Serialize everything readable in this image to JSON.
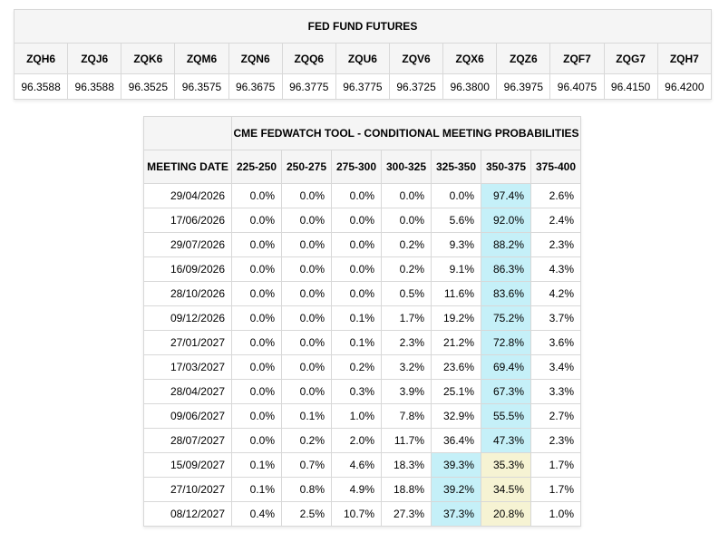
{
  "colors": {
    "highlight_cyan": "#c5f0f8",
    "highlight_yellow": "#f6f3d3",
    "border": "#d8d8d8",
    "header_bg": "#f5f5f5"
  },
  "futures_table": {
    "title": "FED FUND FUTURES",
    "contracts": [
      {
        "code": "ZQH6",
        "price": "96.3588"
      },
      {
        "code": "ZQJ6",
        "price": "96.3588"
      },
      {
        "code": "ZQK6",
        "price": "96.3525"
      },
      {
        "code": "ZQM6",
        "price": "96.3575"
      },
      {
        "code": "ZQN6",
        "price": "96.3675"
      },
      {
        "code": "ZQQ6",
        "price": "96.3775"
      },
      {
        "code": "ZQU6",
        "price": "96.3775"
      },
      {
        "code": "ZQV6",
        "price": "96.3725"
      },
      {
        "code": "ZQX6",
        "price": "96.3800"
      },
      {
        "code": "ZQZ6",
        "price": "96.3975"
      },
      {
        "code": "ZQF7",
        "price": "96.4075"
      },
      {
        "code": "ZQG7",
        "price": "96.4150"
      },
      {
        "code": "ZQH7",
        "price": "96.4200"
      }
    ]
  },
  "fedwatch_table": {
    "title": "CME FEDWATCH TOOL - CONDITIONAL MEETING PROBABILITIES",
    "date_header": "MEETING DATE",
    "rate_ranges": [
      "225-250",
      "250-275",
      "275-300",
      "300-325",
      "325-350",
      "350-375",
      "375-400"
    ],
    "rows": [
      {
        "date": "29/04/2026",
        "values": [
          "0.0%",
          "0.0%",
          "0.0%",
          "0.0%",
          "0.0%",
          "97.4%",
          "2.6%"
        ],
        "highlights": {
          "5": "cyan"
        }
      },
      {
        "date": "17/06/2026",
        "values": [
          "0.0%",
          "0.0%",
          "0.0%",
          "0.0%",
          "5.6%",
          "92.0%",
          "2.4%"
        ],
        "highlights": {
          "5": "cyan"
        }
      },
      {
        "date": "29/07/2026",
        "values": [
          "0.0%",
          "0.0%",
          "0.0%",
          "0.2%",
          "9.3%",
          "88.2%",
          "2.3%"
        ],
        "highlights": {
          "5": "cyan"
        }
      },
      {
        "date": "16/09/2026",
        "values": [
          "0.0%",
          "0.0%",
          "0.0%",
          "0.2%",
          "9.1%",
          "86.3%",
          "4.3%"
        ],
        "highlights": {
          "5": "cyan"
        }
      },
      {
        "date": "28/10/2026",
        "values": [
          "0.0%",
          "0.0%",
          "0.0%",
          "0.5%",
          "11.6%",
          "83.6%",
          "4.2%"
        ],
        "highlights": {
          "5": "cyan"
        }
      },
      {
        "date": "09/12/2026",
        "values": [
          "0.0%",
          "0.0%",
          "0.1%",
          "1.7%",
          "19.2%",
          "75.2%",
          "3.7%"
        ],
        "highlights": {
          "5": "cyan"
        }
      },
      {
        "date": "27/01/2027",
        "values": [
          "0.0%",
          "0.0%",
          "0.1%",
          "2.3%",
          "21.2%",
          "72.8%",
          "3.6%"
        ],
        "highlights": {
          "5": "cyan"
        }
      },
      {
        "date": "17/03/2027",
        "values": [
          "0.0%",
          "0.0%",
          "0.2%",
          "3.2%",
          "23.6%",
          "69.4%",
          "3.4%"
        ],
        "highlights": {
          "5": "cyan"
        }
      },
      {
        "date": "28/04/2027",
        "values": [
          "0.0%",
          "0.0%",
          "0.3%",
          "3.9%",
          "25.1%",
          "67.3%",
          "3.3%"
        ],
        "highlights": {
          "5": "cyan"
        }
      },
      {
        "date": "09/06/2027",
        "values": [
          "0.0%",
          "0.1%",
          "1.0%",
          "7.8%",
          "32.9%",
          "55.5%",
          "2.7%"
        ],
        "highlights": {
          "5": "cyan"
        }
      },
      {
        "date": "28/07/2027",
        "values": [
          "0.0%",
          "0.2%",
          "2.0%",
          "11.7%",
          "36.4%",
          "47.3%",
          "2.3%"
        ],
        "highlights": {
          "5": "cyan"
        }
      },
      {
        "date": "15/09/2027",
        "values": [
          "0.1%",
          "0.7%",
          "4.6%",
          "18.3%",
          "39.3%",
          "35.3%",
          "1.7%"
        ],
        "highlights": {
          "4": "cyan",
          "5": "yellow"
        }
      },
      {
        "date": "27/10/2027",
        "values": [
          "0.1%",
          "0.8%",
          "4.9%",
          "18.8%",
          "39.2%",
          "34.5%",
          "1.7%"
        ],
        "highlights": {
          "4": "cyan",
          "5": "yellow"
        }
      },
      {
        "date": "08/12/2027",
        "values": [
          "0.4%",
          "2.5%",
          "10.7%",
          "27.3%",
          "37.3%",
          "20.8%",
          "1.0%"
        ],
        "highlights": {
          "4": "cyan",
          "5": "yellow"
        }
      }
    ]
  }
}
